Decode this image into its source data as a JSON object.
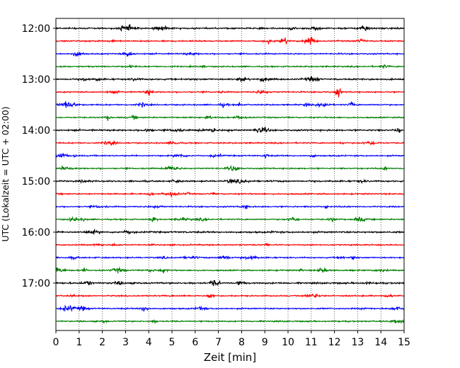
{
  "chart_data": {
    "type": "line",
    "title": "",
    "xlabel": "Zeit  [min]",
    "ylabel": "UTC (Lokalzeit = UTC + 02:00)",
    "xlim": [
      0,
      15
    ],
    "x_ticks": [
      "0",
      "1",
      "2",
      "3",
      "4",
      "5",
      "6",
      "7",
      "8",
      "9",
      "10",
      "11",
      "12",
      "13",
      "14",
      "15"
    ],
    "y_tick_labels": [
      "12:00",
      "13:00",
      "14:00",
      "15:00",
      "16:00",
      "17:00"
    ],
    "grid": "vertical dotted at each minute",
    "colors": {
      "black": "#000000",
      "red": "#ff0000",
      "blue": "#0000ff",
      "green": "#007f00",
      "grid": "#000000"
    },
    "trace_interval_minutes": 15,
    "series": [
      {
        "start": "12:00",
        "color": "black"
      },
      {
        "start": "12:15",
        "color": "red"
      },
      {
        "start": "12:30",
        "color": "blue"
      },
      {
        "start": "12:45",
        "color": "green"
      },
      {
        "start": "13:00",
        "color": "black"
      },
      {
        "start": "13:15",
        "color": "red"
      },
      {
        "start": "13:30",
        "color": "blue"
      },
      {
        "start": "13:45",
        "color": "green"
      },
      {
        "start": "14:00",
        "color": "black"
      },
      {
        "start": "14:15",
        "color": "red"
      },
      {
        "start": "14:30",
        "color": "blue"
      },
      {
        "start": "14:45",
        "color": "green"
      },
      {
        "start": "15:00",
        "color": "black"
      },
      {
        "start": "15:15",
        "color": "red"
      },
      {
        "start": "15:30",
        "color": "blue"
      },
      {
        "start": "15:45",
        "color": "green"
      },
      {
        "start": "16:00",
        "color": "black"
      },
      {
        "start": "16:15",
        "color": "red"
      },
      {
        "start": "16:30",
        "color": "blue"
      },
      {
        "start": "16:45",
        "color": "green"
      },
      {
        "start": "17:00",
        "color": "black"
      },
      {
        "start": "17:15",
        "color": "red"
      },
      {
        "start": "17:30",
        "color": "blue"
      },
      {
        "start": "17:45",
        "color": "green"
      }
    ]
  }
}
